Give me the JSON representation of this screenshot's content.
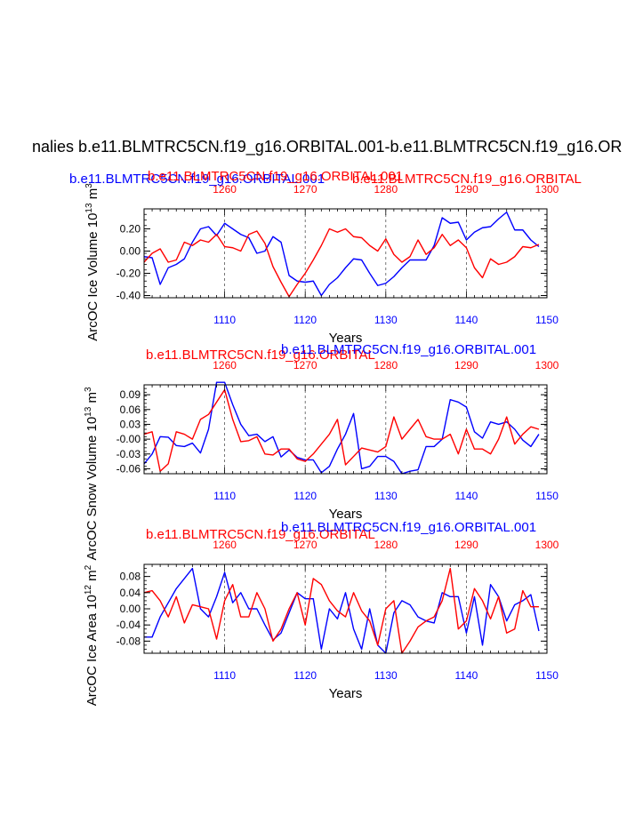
{
  "main_title": "nalies b.e11.BLMTRC5CN.f19_g16.ORBITAL.001-b.e11.BLMTRC5CN.f19_g16.OR",
  "colors": {
    "blue": "#0000ff",
    "red": "#ff0000",
    "black": "#000000",
    "grid": "#555555"
  },
  "series_names": {
    "blue": "b.e11.BLMTRC5CN.f19_g16.ORBITAL.001",
    "red": "b.e11.BLMTRC5CN.f19_g16.ORBITAL"
  },
  "chart_data": [
    {
      "type": "line",
      "ylabel": "ArcOC Ice Volume 10",
      "ylabel_exp": "13",
      "ylabel_unit": " m",
      "ylabel_unit_exp": "3",
      "xlabel": "Years",
      "left_title": "b.e11.BLMTRC5CN.f19_g16.ORBITAL.001",
      "right_title": "b.e11.BLMTRC5CN.f19_g16.ORBITAL",
      "center_title": "b.e11.BLMTRC5CN.f19_g16.ORBITAL.001",
      "bottom_xlim": [
        1100,
        1150
      ],
      "top_xlim": [
        1250,
        1300
      ],
      "ylim": [
        -0.42,
        0.38
      ],
      "yticks": [
        0.2,
        0.0,
        -0.2,
        -0.4
      ],
      "ytick_labels": [
        "0.20",
        "0.00",
        "-0.20",
        "-0.40"
      ],
      "bottom_ticks": [
        1110,
        1120,
        1130,
        1140,
        1150
      ],
      "bottom_tick_labels": [
        "1110",
        "1120",
        "1130",
        "1140",
        "1150"
      ],
      "top_ticks": [
        1260,
        1270,
        1280,
        1290,
        1300
      ],
      "top_tick_labels": [
        "1260",
        "1270",
        "1280",
        "1290",
        "1300"
      ],
      "series": [
        {
          "name": "b.e11.BLMTRC5CN.f19_g16.ORBITAL.001",
          "color": "blue",
          "axis": "bottom",
          "x0": 1100,
          "values": [
            -0.05,
            -0.06,
            -0.3,
            -0.15,
            -0.12,
            -0.07,
            0.08,
            0.2,
            0.22,
            0.14,
            0.25,
            0.2,
            0.15,
            0.12,
            -0.02,
            0.0,
            0.13,
            0.08,
            -0.22,
            -0.27,
            -0.28,
            -0.27,
            -0.4,
            -0.3,
            -0.24,
            -0.15,
            -0.07,
            -0.08,
            -0.2,
            -0.31,
            -0.29,
            -0.23,
            -0.15,
            -0.08,
            -0.08,
            -0.08,
            0.05,
            0.3,
            0.25,
            0.26,
            0.1,
            0.17,
            0.21,
            0.22,
            0.29,
            0.35,
            0.19,
            0.19,
            0.1,
            0.04
          ]
        },
        {
          "name": "b.e11.BLMTRC5CN.f19_g16.ORBITAL",
          "color": "red",
          "axis": "top",
          "x0": 1250,
          "values": [
            -0.1,
            -0.02,
            0.02,
            -0.1,
            -0.08,
            0.08,
            0.05,
            0.1,
            0.08,
            0.15,
            0.04,
            0.03,
            0.0,
            0.15,
            0.18,
            0.07,
            -0.14,
            -0.28,
            -0.41,
            -0.3,
            -0.2,
            -0.08,
            0.05,
            0.2,
            0.17,
            0.2,
            0.13,
            0.12,
            0.05,
            0.0,
            0.11,
            -0.03,
            -0.1,
            -0.05,
            0.1,
            -0.03,
            0.03,
            0.15,
            0.05,
            0.1,
            0.03,
            -0.15,
            -0.24,
            -0.07,
            -0.12,
            -0.1,
            -0.05,
            0.04,
            0.03,
            0.06
          ]
        }
      ]
    },
    {
      "type": "line",
      "ylabel": "ArcOC Snow Volume 10",
      "ylabel_exp": "13",
      "ylabel_unit": " m",
      "ylabel_unit_exp": "3",
      "xlabel": "Years",
      "left_title": "b.e11.BLMTRC5CN.f19_g16.ORBITAL",
      "right_title": "",
      "center_title": "b.e11.BLMTRC5CN.f19_g16.ORBITAL.001",
      "bottom_xlim": [
        1100,
        1150
      ],
      "top_xlim": [
        1250,
        1300
      ],
      "ylim": [
        -0.07,
        0.11
      ],
      "yticks": [
        0.09,
        0.06,
        0.03,
        0.0,
        -0.03,
        -0.06
      ],
      "ytick_labels": [
        "0.09",
        "0.06",
        "0.03",
        "-0.00",
        "-0.03",
        "-0.06"
      ],
      "bottom_ticks": [
        1110,
        1120,
        1130,
        1140,
        1150
      ],
      "bottom_tick_labels": [
        "1110",
        "1120",
        "1130",
        "1140",
        "1150"
      ],
      "top_ticks": [
        1260,
        1270,
        1280,
        1290,
        1300
      ],
      "top_tick_labels": [
        "1260",
        "1270",
        "1280",
        "1290",
        "1300"
      ],
      "series": [
        {
          "name": "b.e11.BLMTRC5CN.f19_g16.ORBITAL.001",
          "color": "blue",
          "axis": "bottom",
          "x0": 1100,
          "values": [
            -0.05,
            -0.03,
            0.005,
            0.004,
            -0.013,
            -0.015,
            -0.008,
            -0.028,
            0.02,
            0.115,
            0.115,
            0.07,
            0.03,
            0.007,
            0.01,
            -0.005,
            0.005,
            -0.036,
            -0.022,
            -0.037,
            -0.042,
            -0.042,
            -0.068,
            -0.055,
            -0.02,
            0.01,
            0.052,
            -0.06,
            -0.055,
            -0.035,
            -0.035,
            -0.045,
            -0.07,
            -0.065,
            -0.062,
            -0.015,
            -0.015,
            0.0,
            0.08,
            0.075,
            0.065,
            0.015,
            0.002,
            0.035,
            0.03,
            0.035,
            0.02,
            -0.002,
            -0.015,
            0.01
          ]
        },
        {
          "name": "b.e11.BLMTRC5CN.f19_g16.ORBITAL",
          "color": "red",
          "axis": "top",
          "x0": 1250,
          "values": [
            0.01,
            0.015,
            -0.065,
            -0.05,
            0.015,
            0.01,
            0.0,
            0.04,
            0.05,
            0.075,
            0.1,
            0.04,
            -0.005,
            -0.003,
            0.005,
            -0.03,
            -0.032,
            -0.02,
            -0.02,
            -0.04,
            -0.045,
            -0.03,
            -0.01,
            0.01,
            0.04,
            -0.052,
            -0.035,
            -0.018,
            -0.022,
            -0.026,
            -0.015,
            0.045,
            0.0,
            0.02,
            0.04,
            0.005,
            0.0,
            0.0,
            0.01,
            -0.03,
            0.02,
            -0.02,
            -0.02,
            -0.03,
            0.0,
            0.045,
            -0.01,
            0.01,
            0.025,
            0.02
          ]
        }
      ]
    },
    {
      "type": "line",
      "ylabel": "ArcOC Ice Area 10",
      "ylabel_exp": "12",
      "ylabel_unit": " m",
      "ylabel_unit_exp": "2",
      "xlabel": "Years",
      "left_title": "b.e11.BLMTRC5CN.f19_g16.ORBITAL",
      "right_title": "",
      "center_title": "b.e11.BLMTRC5CN.f19_g16.ORBITAL.001",
      "bottom_xlim": [
        1100,
        1150
      ],
      "top_xlim": [
        1250,
        1300
      ],
      "ylim": [
        -0.11,
        0.11
      ],
      "yticks": [
        0.08,
        0.04,
        0.0,
        -0.04,
        -0.08
      ],
      "ytick_labels": [
        "0.08",
        "0.04",
        "0.00",
        "-0.04",
        "-0.08"
      ],
      "bottom_ticks": [
        1110,
        1120,
        1130,
        1140,
        1150
      ],
      "bottom_tick_labels": [
        "1110",
        "1120",
        "1130",
        "1140",
        "1150"
      ],
      "top_ticks": [
        1260,
        1270,
        1280,
        1290,
        1300
      ],
      "top_tick_labels": [
        "1260",
        "1270",
        "1280",
        "1290",
        "1300"
      ],
      "series": [
        {
          "name": "b.e11.BLMTRC5CN.f19_g16.ORBITAL.001",
          "color": "blue",
          "axis": "bottom",
          "x0": 1100,
          "values": [
            -0.07,
            -0.07,
            -0.02,
            0.015,
            0.05,
            0.075,
            0.1,
            0.0,
            -0.02,
            0.03,
            0.09,
            0.015,
            0.04,
            0.0,
            0.0,
            -0.04,
            -0.077,
            -0.06,
            -0.01,
            0.04,
            0.025,
            0.025,
            -0.1,
            0.0,
            -0.025,
            0.04,
            -0.05,
            -0.1,
            0.0,
            -0.09,
            -0.11,
            -0.01,
            0.02,
            0.01,
            -0.02,
            -0.03,
            -0.035,
            0.04,
            0.03,
            0.03,
            -0.06,
            0.03,
            -0.09,
            0.06,
            0.03,
            -0.03,
            0.01,
            0.02,
            0.035,
            -0.055
          ]
        },
        {
          "name": "b.e11.BLMTRC5CN.f19_g16.ORBITAL",
          "color": "red",
          "axis": "top",
          "x0": 1250,
          "values": [
            0.04,
            0.045,
            0.02,
            -0.02,
            0.03,
            -0.035,
            0.01,
            0.005,
            0.0,
            -0.075,
            0.02,
            0.06,
            -0.02,
            -0.02,
            0.04,
            0.0,
            -0.08,
            -0.05,
            0.0,
            0.04,
            -0.04,
            0.075,
            0.06,
            0.02,
            -0.005,
            -0.02,
            0.04,
            -0.005,
            -0.03,
            -0.09,
            0.0,
            0.02,
            -0.11,
            -0.08,
            -0.045,
            -0.03,
            -0.02,
            0.02,
            0.1,
            -0.05,
            -0.03,
            0.05,
            0.02,
            -0.025,
            0.03,
            -0.06,
            -0.05,
            0.045,
            0.005,
            0.005
          ]
        }
      ]
    }
  ]
}
